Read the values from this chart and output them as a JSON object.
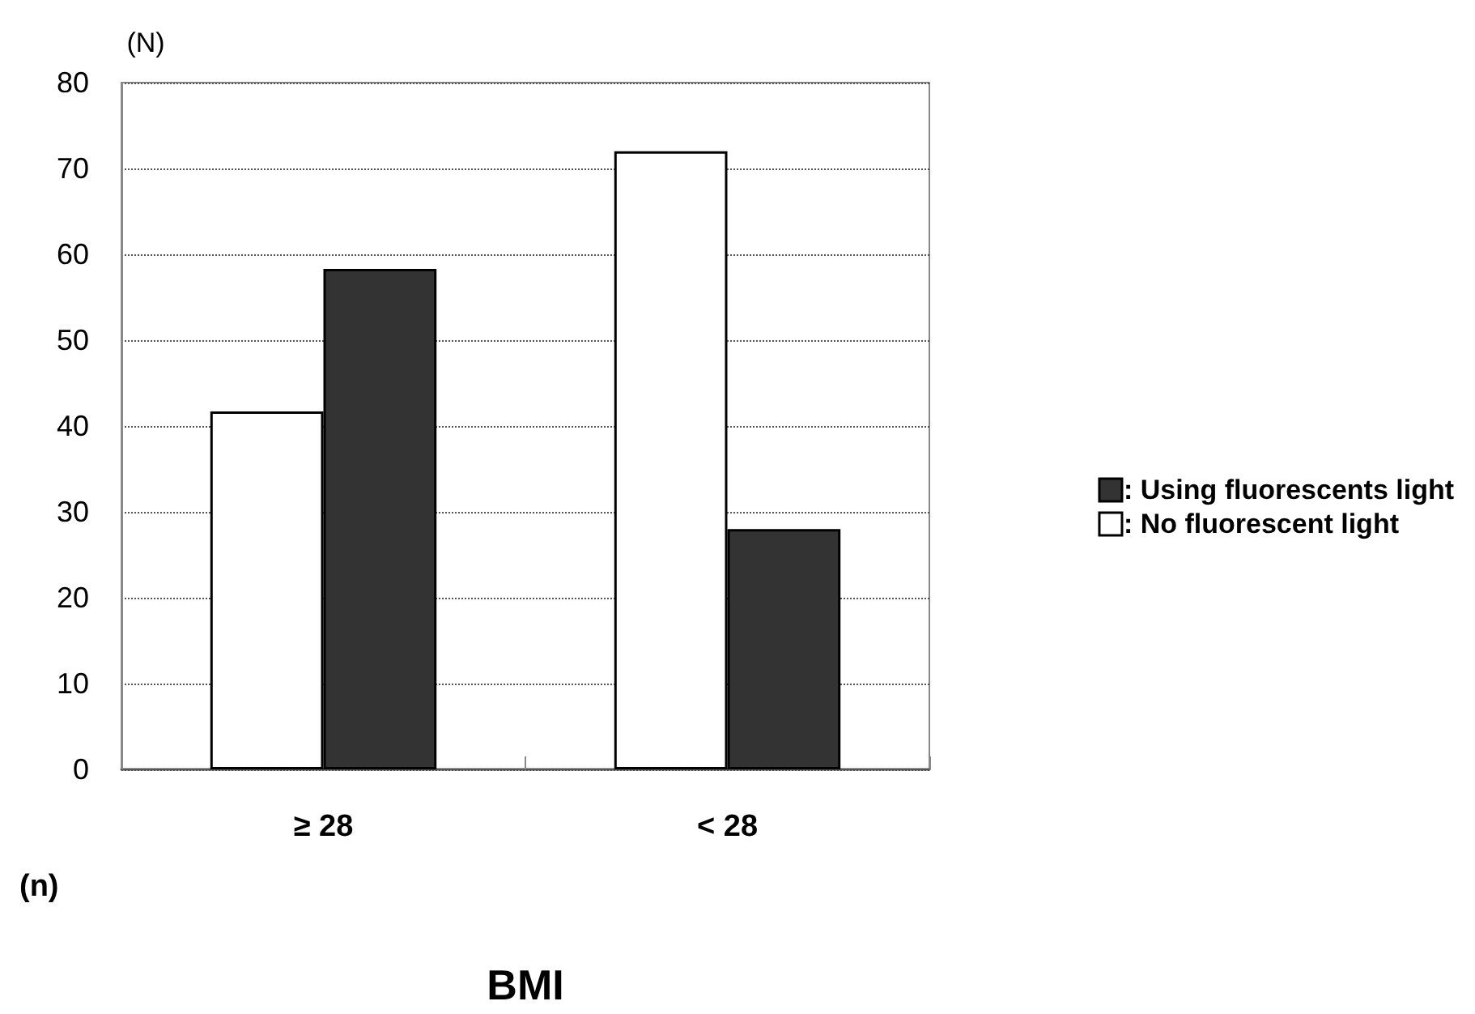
{
  "chart_data": {
    "type": "bar",
    "xlabel": "BMI",
    "ylabel": "(N)",
    "annotations": [
      "(n)"
    ],
    "categories": [
      "≥ 28",
      "< 28"
    ],
    "series": [
      {
        "name": ": No fluorescent light",
        "color": "#ffffff",
        "values": [
          41.7,
          72
        ]
      },
      {
        "name": ": Using fluorescents light",
        "color": "#333333",
        "values": [
          58.3,
          28
        ]
      }
    ],
    "ylim": [
      0,
      80
    ],
    "yticks": [
      0,
      10,
      20,
      30,
      40,
      50,
      60,
      70,
      80
    ],
    "grid": "y",
    "legend": "right"
  }
}
